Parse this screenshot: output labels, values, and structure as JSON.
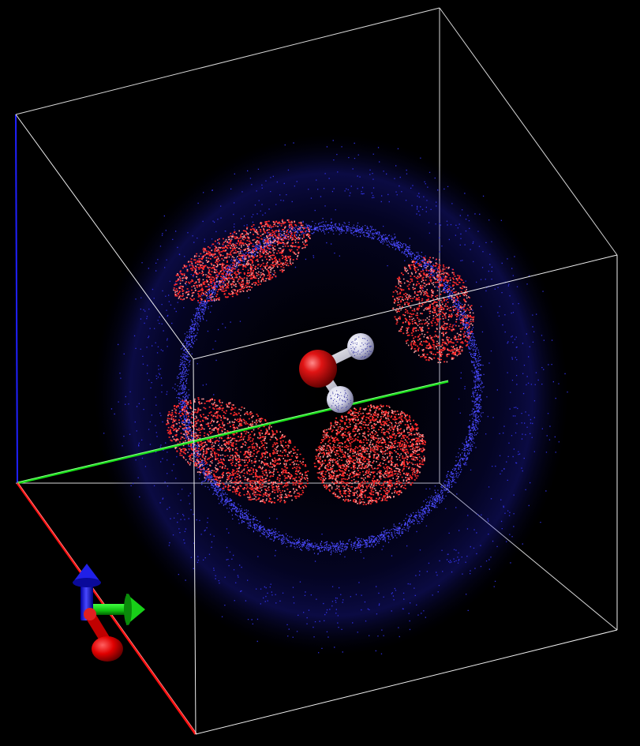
{
  "scene": {
    "background": "#000000",
    "box_line_color": "#f0f0f0",
    "density_shell_color": "#3030e0",
    "density_lobe_color": "#ff2a2a",
    "axis_x_color": "#ff1a1a",
    "axis_y_color": "#1aee1a",
    "axis_z_color": "#1a1aff",
    "molecule": {
      "oxygen_color": "#e01414",
      "hydrogen_color": "#ececf8",
      "atoms": [
        "O",
        "H",
        "H"
      ]
    },
    "orientation_gizmo": {
      "x_color": "#e81010",
      "y_color": "#10e010",
      "z_color": "#1010f0"
    }
  }
}
